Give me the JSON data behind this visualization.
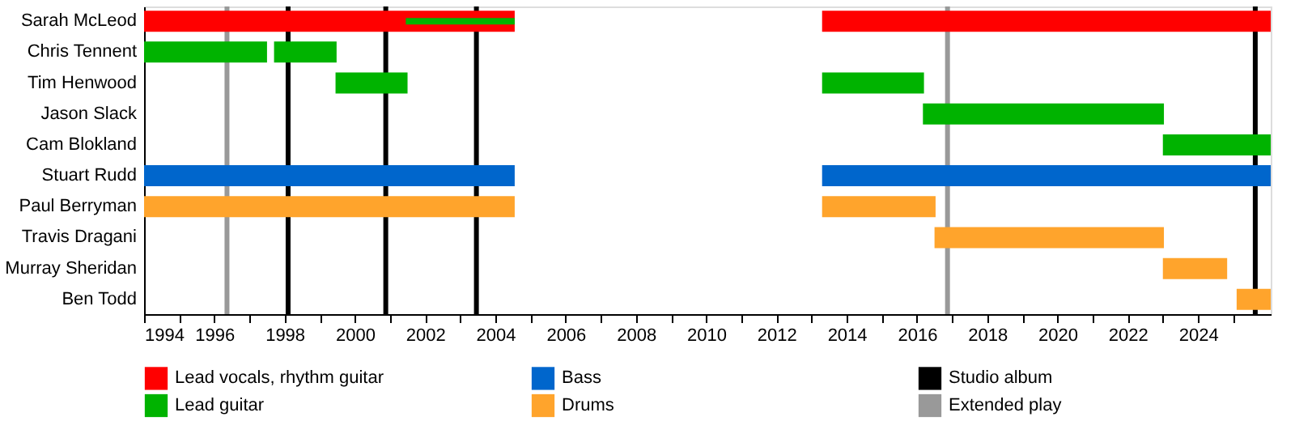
{
  "chart_data": {
    "type": "bar",
    "orientation": "horizontal",
    "categories": [
      "Sarah McLeod",
      "Chris Tennent",
      "Tim Henwood",
      "Jason Slack",
      "Cam Blokland",
      "Stuart Rudd",
      "Paul Berryman",
      "Travis Dragani",
      "Murray Sheridan",
      "Ben Todd"
    ],
    "series": [
      {
        "name": "Lead vocals, rhythm guitar",
        "color": "#ff0000",
        "base": [
          1994,
          null,
          null,
          null,
          null,
          null,
          null,
          null,
          null,
          null
        ],
        "values": [
          10.55,
          null,
          null,
          null,
          null,
          null,
          null,
          null,
          null,
          null
        ]
      },
      {
        "color": "#ff0000",
        "base": [
          2013.3,
          null,
          null,
          null,
          null,
          null,
          null,
          null,
          null,
          null
        ],
        "values": [
          12.77,
          null,
          null,
          null,
          null,
          null,
          null,
          null,
          null,
          null
        ]
      },
      {
        "name": "Lead guitar",
        "color": "#00b300",
        "base": [
          2001.45,
          1994,
          1999.45,
          2016.17,
          2023.0,
          null,
          null,
          null,
          null,
          null
        ],
        "values": [
          3.1,
          3.5,
          2.05,
          6.86,
          3.07,
          null,
          null,
          null,
          null,
          null
        ]
      },
      {
        "color": "#00b300",
        "base": [
          null,
          1997.7,
          2013.3,
          null,
          null,
          null,
          null,
          null,
          null,
          null
        ],
        "values": [
          null,
          1.78,
          2.9,
          null,
          null,
          null,
          null,
          null,
          null,
          null
        ]
      },
      {
        "name": "Bass",
        "color": "#0066cc",
        "base": [
          null,
          null,
          null,
          null,
          null,
          1994,
          null,
          null,
          null,
          null
        ],
        "values": [
          null,
          null,
          null,
          null,
          null,
          10.55,
          null,
          null,
          null,
          null
        ]
      },
      {
        "color": "#0066cc",
        "base": [
          null,
          null,
          null,
          null,
          null,
          2013.3,
          null,
          null,
          null,
          null
        ],
        "values": [
          null,
          null,
          null,
          null,
          null,
          12.77,
          null,
          null,
          null,
          null
        ]
      },
      {
        "name": "Drums",
        "color": "#ffa42c",
        "base": [
          null,
          null,
          null,
          null,
          null,
          null,
          1994,
          2016.5,
          2023.0,
          2025.1
        ],
        "values": [
          null,
          null,
          null,
          null,
          null,
          null,
          10.55,
          6.53,
          1.83,
          0.97
        ]
      },
      {
        "color": "#ffa42c",
        "base": [
          null,
          null,
          null,
          null,
          null,
          null,
          2013.3,
          null,
          null,
          null
        ],
        "values": [
          null,
          null,
          null,
          null,
          null,
          null,
          3.23,
          null,
          null,
          null
        ]
      }
    ],
    "ref_lines": [
      {
        "axis": "x",
        "value": 1998.1,
        "label": "Studio album",
        "color": "#000000"
      },
      {
        "axis": "x",
        "value": 2000.88,
        "color": "#000000"
      },
      {
        "axis": "x",
        "value": 2003.46,
        "color": "#000000"
      },
      {
        "axis": "x",
        "value": 2025.63,
        "color": "#000000"
      },
      {
        "axis": "x",
        "value": 1996.36,
        "label": "Extended play",
        "color": "#999999"
      },
      {
        "axis": "x",
        "value": 2016.87,
        "color": "#999999"
      }
    ],
    "xlim": [
      1994,
      2026.07
    ],
    "xticks": [
      1994,
      {
        "value": 1995,
        "label": null
      },
      1996,
      {
        "value": 1997,
        "label": null
      },
      1998,
      {
        "value": 1999,
        "label": null
      },
      2000,
      {
        "value": 2001,
        "label": null
      },
      2002,
      {
        "value": 2003,
        "label": null
      },
      2004,
      {
        "value": 2005,
        "label": null
      },
      2006,
      {
        "value": 2007,
        "label": null
      },
      2008,
      {
        "value": 2009,
        "label": null
      },
      2010,
      {
        "value": 2011,
        "label": null
      },
      2012,
      {
        "value": 2013,
        "label": null
      },
      2014,
      {
        "value": 2015,
        "label": null
      },
      2016,
      {
        "value": 2017,
        "label": null
      },
      2018,
      {
        "value": 2019,
        "label": null
      },
      2020,
      {
        "value": 2021,
        "label": null
      },
      2022,
      {
        "value": 2023,
        "label": null
      },
      2024,
      {
        "value": 2025,
        "label": null
      }
    ],
    "grid": false,
    "legend": "bottom"
  }
}
